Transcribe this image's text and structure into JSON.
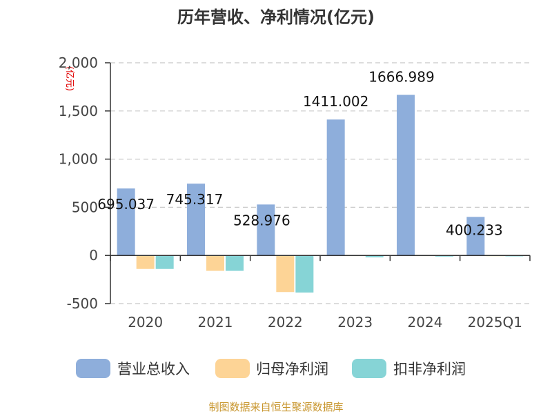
{
  "chart_data": {
    "type": "bar",
    "title": "历年营收、净利情况(亿元)",
    "ylabel": "(亿元)",
    "categories": [
      "2020",
      "2021",
      "2022",
      "2023",
      "2024",
      "2025Q1"
    ],
    "series": [
      {
        "name": "营业总收入",
        "color": "#8eaedb",
        "values": [
          695.037,
          745.317,
          528.976,
          1411.002,
          1666.989,
          400.233
        ]
      },
      {
        "name": "归母净利润",
        "color": "#fdd496",
        "values": [
          -140,
          -160,
          -380,
          -5,
          -3,
          -8
        ]
      },
      {
        "name": "扣非净利润",
        "color": "#86d4d6",
        "values": [
          -140,
          -160,
          -385,
          -20,
          -12,
          -10
        ]
      }
    ],
    "data_labels": [
      "695.037",
      "745.317",
      "528.976",
      "1411.002",
      "1666.989",
      "400.233"
    ],
    "yticks": [
      "2,000",
      "1,500",
      "1,000",
      "500",
      "0",
      "-500"
    ],
    "ylim": [
      -500,
      2000
    ],
    "grid": true,
    "legend_position": "bottom"
  },
  "source": "制图数据来自恒生聚源数据库"
}
